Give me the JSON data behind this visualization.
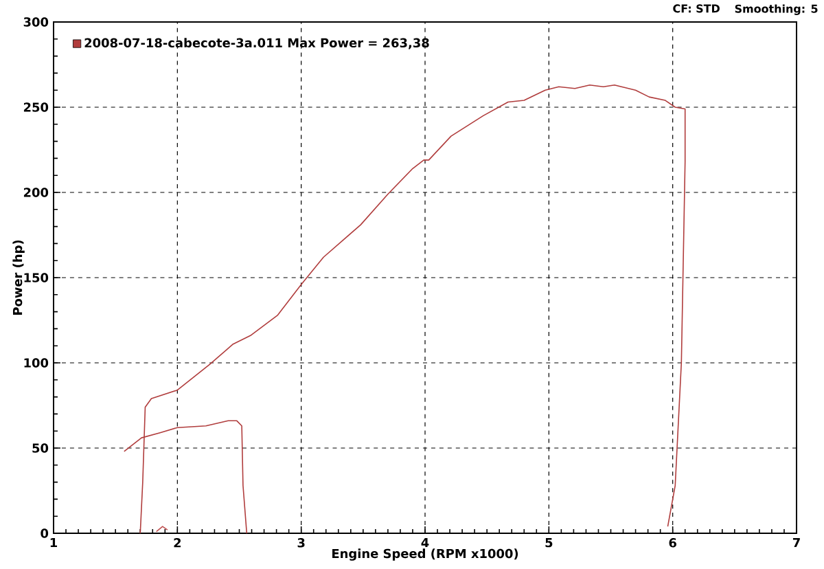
{
  "chart_data": {
    "type": "line",
    "xlabel": "Engine Speed (RPM x1000)",
    "ylabel": "Power (hp)",
    "annotations": [
      "CF: STD",
      "Smoothing: 5"
    ],
    "xlim": [
      1,
      7
    ],
    "xticks": [
      1,
      2,
      3,
      4,
      5,
      6,
      7
    ],
    "ylim": [
      0,
      300
    ],
    "yticks": [
      0,
      50,
      100,
      150,
      200,
      250,
      300
    ],
    "grid": true,
    "legend": "top left",
    "series": [
      {
        "name": "2008-07-18-cabecote-3a.011 Max Power = 263,38",
        "color": "#b03c3c",
        "x": [
          1.57,
          1.71,
          1.86,
          2.0,
          2.23,
          2.41,
          2.48,
          2.52,
          2.53,
          2.56,
          null,
          1.7,
          1.72,
          1.74,
          1.79,
          2.0,
          2.26,
          2.45,
          2.59,
          2.81,
          3.0,
          3.18,
          3.48,
          3.7,
          3.9,
          3.99,
          4.03,
          4.21,
          4.47,
          4.67,
          4.8,
          4.97,
          5.08,
          5.21,
          5.33,
          5.44,
          5.53,
          5.7,
          5.81,
          5.94,
          6.02,
          6.1,
          6.1,
          6.07,
          6.02,
          5.96
        ],
        "values": [
          48,
          56,
          59,
          62,
          63,
          66,
          66,
          63,
          28,
          0,
          null,
          0,
          30,
          74,
          79,
          84,
          99,
          111,
          116,
          128,
          146,
          162,
          181,
          199,
          214,
          219,
          219,
          233,
          245,
          253,
          254,
          260,
          262,
          261,
          263,
          262,
          263,
          260,
          256,
          254,
          250,
          249,
          218,
          100,
          28,
          4
        ]
      },
      {
        "color": "#c05050",
        "x": [
          1.83,
          1.88,
          1.92
        ],
        "values": [
          1,
          4,
          2
        ]
      }
    ]
  }
}
